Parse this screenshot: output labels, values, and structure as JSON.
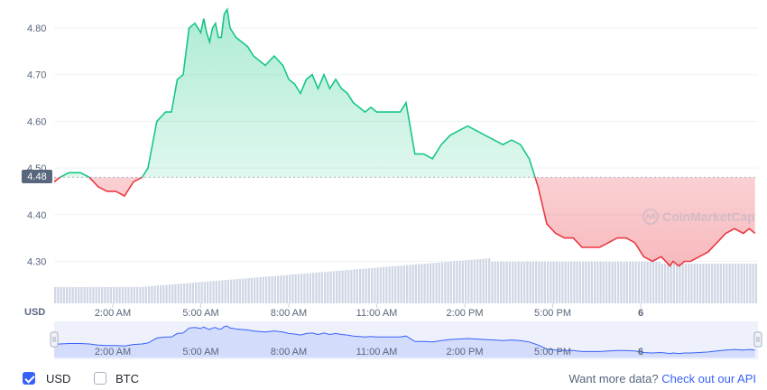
{
  "chart_data": {
    "type": "area",
    "currency_label": "USD",
    "current_price_label": "4.48",
    "reference_price": 4.48,
    "ylim": [
      4.21,
      4.86
    ],
    "y_ticks": [
      "4.80",
      "4.70",
      "4.60",
      "4.50",
      "4.40",
      "4.30"
    ],
    "x_ticks": [
      "2:00 AM",
      "5:00 AM",
      "8:00 AM",
      "11:00 AM",
      "2:00 PM",
      "5:00 PM",
      "6"
    ],
    "colors": {
      "up": "#16c784",
      "down": "#ea3943",
      "volume": "#cfd6e4",
      "navigator": "#3861fb"
    },
    "watermark": "CoinMarketCap",
    "series": [
      {
        "x": [
          0.0,
          0.2,
          0.5,
          0.9,
          1.2,
          1.5,
          1.8,
          2.1,
          2.4,
          2.7,
          3.0,
          3.2,
          3.5,
          3.8,
          4.0,
          4.2,
          4.4,
          4.6,
          4.8,
          5.0,
          5.1,
          5.2,
          5.3,
          5.4,
          5.5,
          5.6,
          5.7,
          5.8,
          5.9,
          6.0,
          6.2,
          6.4,
          6.6,
          6.8,
          7.0,
          7.2,
          7.5,
          7.8,
          8.0,
          8.2,
          8.4,
          8.6,
          8.8,
          9.0,
          9.2,
          9.4,
          9.6,
          9.8,
          10.0,
          10.2,
          10.4,
          10.6,
          10.8,
          11.0,
          11.2,
          11.5,
          11.8,
          12.0,
          12.3,
          12.6,
          12.9,
          13.2,
          13.5,
          13.8,
          14.1,
          14.4,
          14.7,
          15.0,
          15.3,
          15.6,
          15.9,
          16.2,
          16.5,
          16.8,
          17.1,
          17.4,
          17.7,
          18.0,
          18.3,
          18.6,
          18.9,
          19.2,
          19.5,
          19.8,
          20.1,
          20.4,
          20.7,
          21.0,
          21.1,
          21.3,
          21.5,
          21.7,
          22.0,
          22.3,
          22.6,
          22.9,
          23.2,
          23.5,
          23.7,
          23.9
        ],
        "values": [
          4.47,
          4.48,
          4.49,
          4.49,
          4.48,
          4.46,
          4.45,
          4.45,
          4.44,
          4.47,
          4.48,
          4.5,
          4.6,
          4.62,
          4.62,
          4.69,
          4.7,
          4.8,
          4.81,
          4.79,
          4.82,
          4.79,
          4.77,
          4.8,
          4.81,
          4.78,
          4.78,
          4.83,
          4.84,
          4.8,
          4.78,
          4.77,
          4.76,
          4.74,
          4.73,
          4.72,
          4.74,
          4.72,
          4.69,
          4.68,
          4.66,
          4.69,
          4.7,
          4.67,
          4.7,
          4.67,
          4.69,
          4.67,
          4.66,
          4.64,
          4.63,
          4.62,
          4.63,
          4.62,
          4.62,
          4.62,
          4.62,
          4.64,
          4.53,
          4.53,
          4.52,
          4.55,
          4.57,
          4.58,
          4.59,
          4.58,
          4.57,
          4.56,
          4.55,
          4.56,
          4.55,
          4.52,
          4.46,
          4.38,
          4.36,
          4.35,
          4.35,
          4.33,
          4.33,
          4.33,
          4.34,
          4.35,
          4.35,
          4.34,
          4.31,
          4.3,
          4.31,
          4.29,
          4.3,
          4.29,
          4.3,
          4.3,
          4.31,
          4.32,
          4.34,
          4.36,
          4.37,
          4.36,
          4.37,
          4.36
        ]
      }
    ]
  },
  "footer": {
    "usd_label": "USD",
    "btc_label": "BTC",
    "more_text": "Want more data?",
    "api_link": "Check out our API"
  }
}
